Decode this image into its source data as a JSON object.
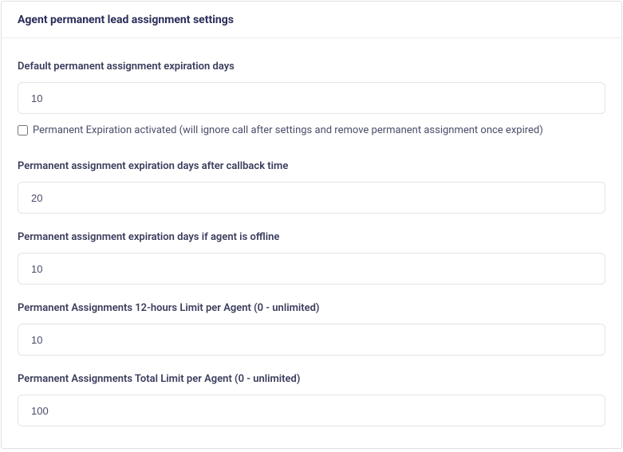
{
  "panel": {
    "title": "Agent permanent lead assignment settings"
  },
  "fields": {
    "default_expiration": {
      "label": "Default permanent assignment expiration days",
      "value": "10"
    },
    "expiration_activated": {
      "label": "Permanent Expiration activated (will ignore call after settings and remove permanent assignment once expired)",
      "checked": false
    },
    "expiration_after_callback": {
      "label": "Permanent assignment expiration days after callback time",
      "value": "20"
    },
    "expiration_if_offline": {
      "label": "Permanent assignment expiration days if agent is offline",
      "value": "10"
    },
    "limit_12h": {
      "label": "Permanent Assignments 12-hours Limit per Agent (0 - unlimited)",
      "value": "10"
    },
    "limit_total": {
      "label": "Permanent Assignments Total Limit per Agent (0 - unlimited)",
      "value": "100"
    }
  },
  "colors": {
    "title_color": "#2a2d5a",
    "label_color": "#3a3d5c",
    "text_color": "#4a4d68",
    "border_color": "#e4e3ea",
    "panel_border": "#e0e0e5",
    "header_border": "#eceaf0",
    "background": "#ffffff"
  }
}
